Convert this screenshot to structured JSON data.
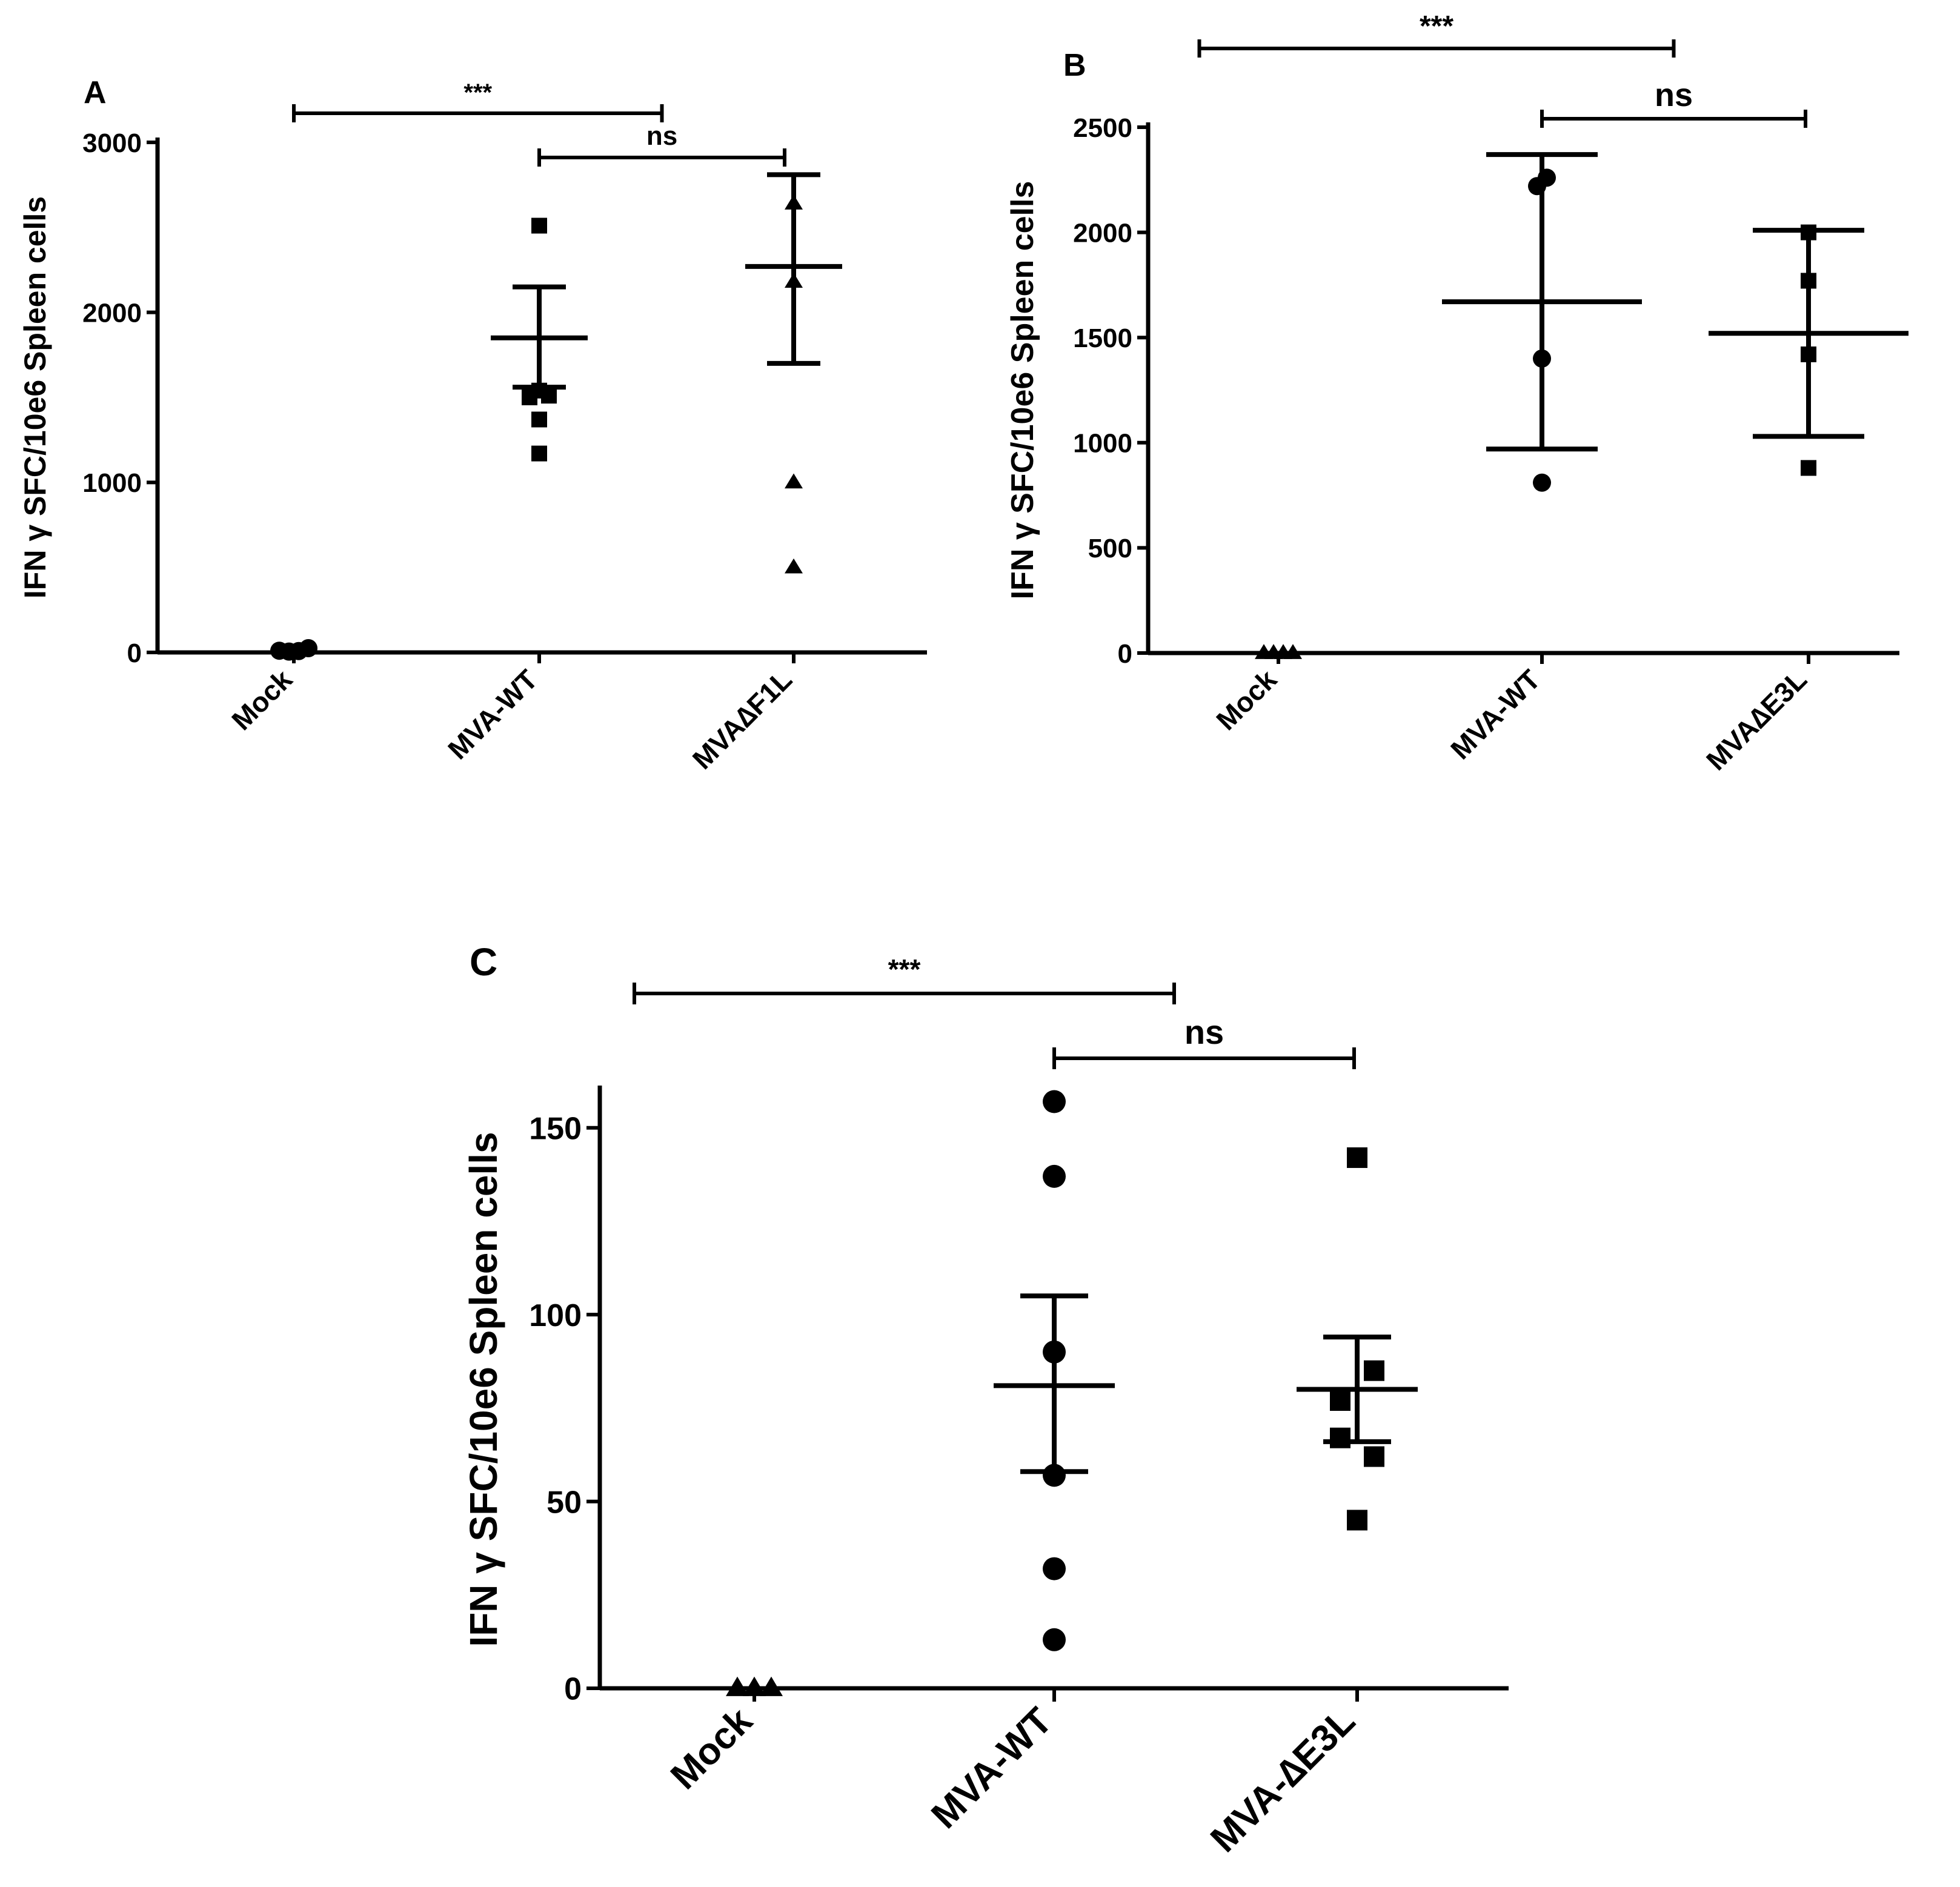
{
  "chart_data": [
    {
      "panel_label": "A",
      "type": "scatter",
      "ylabel": "IFN γ SFC/10e6 Spleen cells",
      "ylim": [
        0,
        3000
      ],
      "yticks": [
        0,
        1000,
        2000,
        3000
      ],
      "categories": [
        "Mock",
        "MVA-WT",
        "MVA∆F1L"
      ],
      "groups": [
        {
          "name": "Mock",
          "marker": "circle",
          "points": [
            {
              "o": -0.6,
              "v": 10
            },
            {
              "o": -0.2,
              "v": 5
            },
            {
              "o": 0.2,
              "v": 8
            },
            {
              "o": 0.6,
              "v": 25
            }
          ],
          "mean": null,
          "sem": null
        },
        {
          "name": "MVA-WT",
          "marker": "square",
          "points": [
            {
              "o": 0,
              "v": 2510
            },
            {
              "o": 0,
              "v": 1540
            },
            {
              "o": -0.4,
              "v": 1500
            },
            {
              "o": 0.4,
              "v": 1510
            },
            {
              "o": 0,
              "v": 1370
            },
            {
              "o": 0,
              "v": 1170
            }
          ],
          "mean": 1850,
          "sem": [
            1560,
            2150
          ]
        },
        {
          "name": "MVA∆F1L",
          "marker": "triangle",
          "points": [
            {
              "o": 0,
              "v": 2640
            },
            {
              "o": 0,
              "v": 2180
            },
            {
              "o": 0,
              "v": 1000
            },
            {
              "o": 0,
              "v": 500
            }
          ],
          "mean": 2270,
          "sem": [
            1700,
            2810
          ]
        }
      ],
      "significance": [
        {
          "label": "***",
          "from": 0,
          "to": 1.5
        },
        {
          "label": "ns",
          "from": 1,
          "to": 2
        }
      ]
    },
    {
      "panel_label": "B",
      "type": "scatter",
      "ylabel": "IFN γ SFC/10e6 Spleen cells",
      "ylim": [
        0,
        2500
      ],
      "yticks": [
        0,
        500,
        1000,
        1500,
        2000,
        2500
      ],
      "categories": [
        "Mock",
        "MVA-WT",
        "MVA∆E3L"
      ],
      "groups": [
        {
          "name": "Mock",
          "marker": "triangle",
          "points": [
            {
              "o": -0.6,
              "v": 0
            },
            {
              "o": -0.2,
              "v": 0
            },
            {
              "o": 0.2,
              "v": 0
            },
            {
              "o": 0.6,
              "v": 0
            }
          ],
          "mean": null,
          "sem": null
        },
        {
          "name": "MVA-WT",
          "marker": "circle",
          "points": [
            {
              "o": -0.2,
              "v": 2220
            },
            {
              "o": 0.2,
              "v": 2260
            },
            {
              "o": 0,
              "v": 1400
            },
            {
              "o": 0,
              "v": 810
            }
          ],
          "mean": 1670,
          "sem": [
            970,
            2370
          ]
        },
        {
          "name": "MVA∆E3L",
          "marker": "square",
          "points": [
            {
              "o": 0,
              "v": 2000
            },
            {
              "o": 0,
              "v": 1770
            },
            {
              "o": 0,
              "v": 1420
            },
            {
              "o": 0,
              "v": 880
            }
          ],
          "mean": 1520,
          "sem": [
            1030,
            2010
          ]
        }
      ],
      "significance": [
        {
          "label": "***",
          "from": -0.3,
          "to": 1.5
        },
        {
          "label": "ns",
          "from": 1,
          "to": 2
        }
      ]
    },
    {
      "panel_label": "C",
      "type": "scatter",
      "ylabel": "IFN γ SFC/10e6 Spleen cells",
      "ylim": [
        0,
        160
      ],
      "yticks": [
        0,
        50,
        100,
        150
      ],
      "categories": [
        "Mock",
        "MVA-WT",
        "MVA-∆E3L"
      ],
      "groups": [
        {
          "name": "Mock",
          "marker": "triangle",
          "points": [
            {
              "o": -0.5,
              "v": 0
            },
            {
              "o": 0,
              "v": 0
            },
            {
              "o": 0.5,
              "v": 0
            }
          ],
          "mean": null,
          "sem": null
        },
        {
          "name": "MVA-WT",
          "marker": "circle",
          "points": [
            {
              "o": 0,
              "v": 157
            },
            {
              "o": 0,
              "v": 137
            },
            {
              "o": 0,
              "v": 90
            },
            {
              "o": 0,
              "v": 57
            },
            {
              "o": 0,
              "v": 32
            },
            {
              "o": 0,
              "v": 13
            }
          ],
          "mean": 81,
          "sem": [
            58,
            105
          ]
        },
        {
          "name": "MVA-∆E3L",
          "marker": "square",
          "points": [
            {
              "o": 0,
              "v": 142
            },
            {
              "o": 0.5,
              "v": 85
            },
            {
              "o": -0.5,
              "v": 77
            },
            {
              "o": -0.5,
              "v": 67
            },
            {
              "o": 0.5,
              "v": 62
            },
            {
              "o": 0,
              "v": 45
            }
          ],
          "mean": 80,
          "sem": [
            66,
            94
          ]
        }
      ],
      "significance": [
        {
          "label": "***",
          "from": -0.4,
          "to": 1.4
        },
        {
          "label": "ns",
          "from": 1,
          "to": 2
        }
      ]
    }
  ]
}
